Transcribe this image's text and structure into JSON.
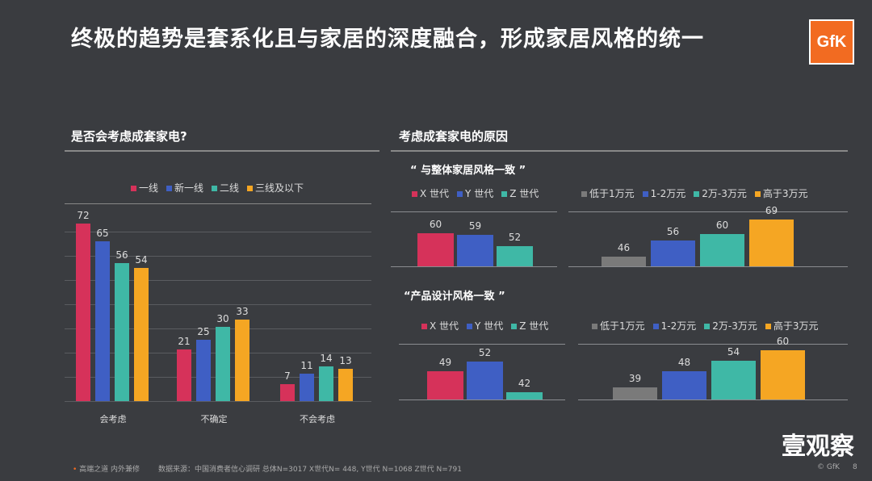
{
  "title": "终极的趋势是套系化且与家居的深度融合，形成家居风格的统一",
  "logo": "GfK",
  "watermark": "壹观察",
  "colors": {
    "red": "#d6325a",
    "blue": "#3f5fc4",
    "teal": "#3fb8a6",
    "orange": "#f5a623",
    "gray": "#7a7a7a"
  },
  "left": {
    "heading": "是否会考虑成套家电?"
  },
  "right": {
    "heading": "考虑成套家电的原因",
    "sub1": "“ 与整体家居风格一致 ”",
    "sub2": "“产品设计风格一致 ”"
  },
  "footer": {
    "bullet": "高端之道 内外兼修",
    "source": "数据来源：中国消费者信心调研   总体N=3017   X世代N= 448, Y世代 N=1068 Z世代 N=791",
    "copyright": "© GfK",
    "page": "8"
  },
  "chart_data": [
    {
      "type": "bar",
      "title": "是否会考虑成套家电?",
      "categories": [
        "会考虑",
        "不确定",
        "不会考虑"
      ],
      "ylim": [
        0,
        77
      ],
      "grid": true,
      "legend": "top",
      "series": [
        {
          "name": "一线",
          "color": "#d6325a",
          "values": [
            72,
            21,
            7
          ]
        },
        {
          "name": "新一线",
          "color": "#3f5fc4",
          "values": [
            65,
            25,
            11
          ]
        },
        {
          "name": "二线",
          "color": "#3fb8a6",
          "values": [
            56,
            30,
            14
          ]
        },
        {
          "name": "三线及以下",
          "color": "#f5a623",
          "values": [
            54,
            33,
            13
          ]
        }
      ]
    },
    {
      "type": "bar",
      "title": "“ 与整体家居风格一致 ”",
      "ylim": [
        40,
        73
      ],
      "categories": [
        "X 世代",
        "Y 世代",
        "Z 世代"
      ],
      "colors": [
        "#d6325a",
        "#3f5fc4",
        "#3fb8a6"
      ],
      "values": [
        60,
        59,
        52
      ]
    },
    {
      "type": "bar",
      "ylim": [
        40,
        74
      ],
      "categories": [
        "低于1万元",
        "1-2万元",
        "2万-3万元",
        "高于3万元"
      ],
      "colors": [
        "#7a7a7a",
        "#3f5fc4",
        "#3fb8a6",
        "#f5a623"
      ],
      "values": [
        46,
        56,
        60,
        69
      ]
    },
    {
      "type": "bar",
      "title": "“产品设计风格一致 ”",
      "ylim": [
        39.5,
        58
      ],
      "categories": [
        "X 世代",
        "Y 世代",
        "Z 世代"
      ],
      "colors": [
        "#d6325a",
        "#3f5fc4",
        "#3fb8a6"
      ],
      "values": [
        49,
        52,
        42
      ]
    },
    {
      "type": "bar",
      "ylim": [
        32,
        63.6
      ],
      "categories": [
        "低于1万元",
        "1-2万元",
        "2万-3万元",
        "高于3万元"
      ],
      "colors": [
        "#7a7a7a",
        "#3f5fc4",
        "#3fb8a6",
        "#f5a623"
      ],
      "values": [
        39,
        48,
        54,
        60
      ]
    }
  ]
}
